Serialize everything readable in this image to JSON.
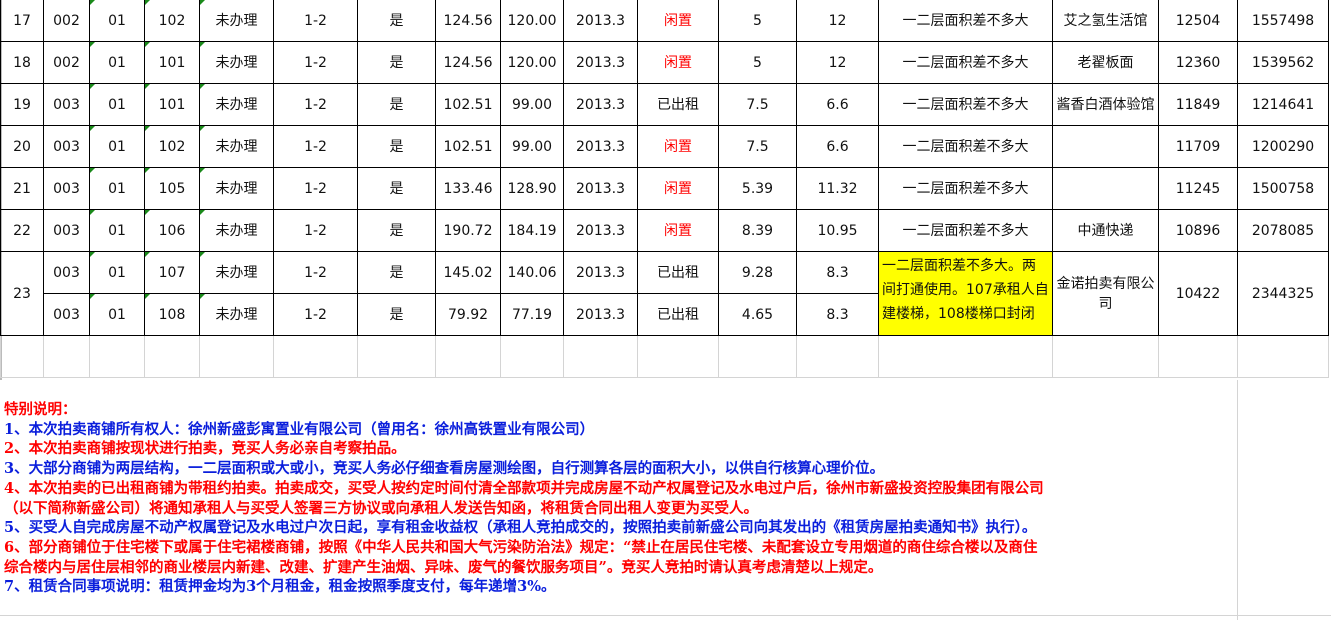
{
  "colors": {
    "idle_status": "#ff0000",
    "highlight": "#ffff00",
    "notes_red": "#ff0000",
    "notes_blue": "#0a1edc"
  },
  "rows": [
    {
      "no": "17",
      "bldg": "002",
      "unit": "01",
      "room": "102",
      "cert": "未办理",
      "floor": "1-2",
      "flag": "是",
      "area1": "124.56",
      "area2": "120.00",
      "year": "2013.3",
      "status": "闲置",
      "v1": "5",
      "v2": "12",
      "remark": "一二层面积差不多大",
      "tenant": "艾之氢生活馆",
      "price": "12504",
      "total": "1557498"
    },
    {
      "no": "18",
      "bldg": "002",
      "unit": "01",
      "room": "101",
      "cert": "未办理",
      "floor": "1-2",
      "flag": "是",
      "area1": "124.56",
      "area2": "120.00",
      "year": "2013.3",
      "status": "闲置",
      "v1": "5",
      "v2": "12",
      "remark": "一二层面积差不多大",
      "tenant": "老翟板面",
      "price": "12360",
      "total": "1539562"
    },
    {
      "no": "19",
      "bldg": "003",
      "unit": "01",
      "room": "101",
      "cert": "未办理",
      "floor": "1-2",
      "flag": "是",
      "area1": "102.51",
      "area2": "99.00",
      "year": "2013.3",
      "status": "已出租",
      "v1": "7.5",
      "v2": "6.6",
      "remark": "一二层面积差不多大",
      "tenant": "酱香白酒体验馆",
      "price": "11849",
      "total": "1214641"
    },
    {
      "no": "20",
      "bldg": "003",
      "unit": "01",
      "room": "102",
      "cert": "未办理",
      "floor": "1-2",
      "flag": "是",
      "area1": "102.51",
      "area2": "99.00",
      "year": "2013.3",
      "status": "闲置",
      "v1": "7.5",
      "v2": "6.6",
      "remark": "一二层面积差不多大",
      "tenant": "",
      "price": "11709",
      "total": "1200290"
    },
    {
      "no": "21",
      "bldg": "003",
      "unit": "01",
      "room": "105",
      "cert": "未办理",
      "floor": "1-2",
      "flag": "是",
      "area1": "133.46",
      "area2": "128.90",
      "year": "2013.3",
      "status": "闲置",
      "v1": "5.39",
      "v2": "11.32",
      "remark": "一二层面积差不多大",
      "tenant": "",
      "price": "11245",
      "total": "1500758"
    },
    {
      "no": "22",
      "bldg": "003",
      "unit": "01",
      "room": "106",
      "cert": "未办理",
      "floor": "1-2",
      "flag": "是",
      "area1": "190.72",
      "area2": "184.19",
      "year": "2013.3",
      "status": "闲置",
      "v1": "8.39",
      "v2": "10.95",
      "remark": "一二层面积差不多大",
      "tenant": "中通快递",
      "price": "10896",
      "total": "2078085"
    }
  ],
  "merged_row": {
    "no": "23",
    "remark": "一二层面积差不多大。两间打通使用。107承租人自建楼梯，108楼梯口封闭",
    "tenant": "金诺拍卖有限公司",
    "price": "10422",
    "total": "2344325",
    "subrows": [
      {
        "bldg": "003",
        "unit": "01",
        "room": "107",
        "cert": "未办理",
        "floor": "1-2",
        "flag": "是",
        "area1": "145.02",
        "area2": "140.06",
        "year": "2013.3",
        "status": "已出租",
        "v1": "9.28",
        "v2": "8.3"
      },
      {
        "bldg": "003",
        "unit": "01",
        "room": "108",
        "cert": "未办理",
        "floor": "1-2",
        "flag": "是",
        "area1": "79.92",
        "area2": "77.19",
        "year": "2013.3",
        "status": "已出租",
        "v1": "4.65",
        "v2": "8.3"
      }
    ]
  },
  "notes": {
    "title": "特别说明：",
    "lines": [
      {
        "text": "1、本次拍卖商铺所有权人：徐州新盛彭寓置业有限公司（曾用名：徐州高铁置业有限公司）",
        "color": "blue"
      },
      {
        "text": "2、本次拍卖商铺按现状进行拍卖，竞买人务必亲自考察拍品。",
        "color": "red"
      },
      {
        "text": "3、大部分商铺为两层结构，一二层面积或大或小，竞买人务必仔细查看房屋测绘图，自行测算各层的面积大小，以供自行核算心理价位。",
        "color": "blue"
      },
      {
        "text": "4、本次拍卖的已出租商铺为带租约拍卖。拍卖成交，买受人按约定时间付清全部款项并完成房屋不动产权属登记及水电过户后，徐州市新盛投资控股集团有限公司",
        "color": "red"
      },
      {
        "text": "（以下简称新盛公司）将通知承租人与买受人签署三方协议或向承租人发送告知函，将租赁合同出租人变更为买受人。",
        "color": "red"
      },
      {
        "text": "5、买受人自完成房屋不动产权属登记及水电过户次日起，享有租金收益权（承租人竞拍成交的，按照拍卖前新盛公司向其发出的《租赁房屋拍卖通知书》执行）。",
        "color": "blue"
      },
      {
        "text": "6、部分商铺位于住宅楼下或属于住宅裙楼商铺，按照《中华人民共和国大气污染防治法》规定：“禁止在居民住宅楼、未配套设立专用烟道的商住综合楼以及商住",
        "color": "red"
      },
      {
        "text": "综合楼内与居住层相邻的商业楼层内新建、改建、扩建产生油烟、异味、废气的餐饮服务项目”。竞买人竞拍时请认真考虑清楚以上规定。",
        "color": "red"
      },
      {
        "text": "7、租赁合同事项说明：租赁押金均为3个月租金，租金按照季度支付，每年递增3%。",
        "color": "blue"
      }
    ]
  }
}
